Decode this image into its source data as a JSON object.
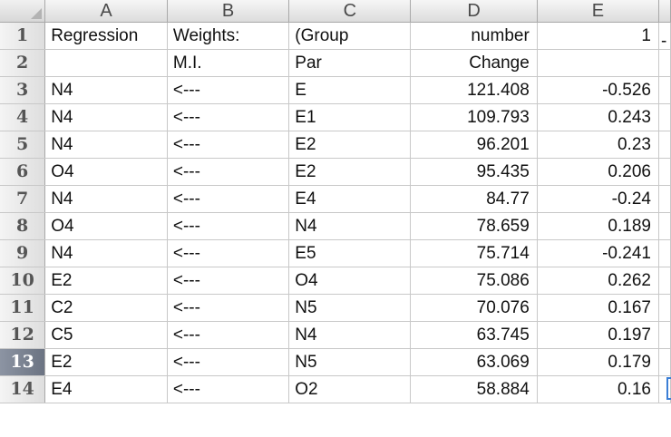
{
  "columns": [
    "A",
    "B",
    "C",
    "D",
    "E"
  ],
  "rows": [
    {
      "num": "1",
      "cells": [
        "Regression",
        "Weights:",
        "(Group",
        "number",
        "1"
      ]
    },
    {
      "num": "2",
      "cells": [
        "",
        "M.I.",
        "Par",
        "Change",
        ""
      ]
    },
    {
      "num": "3",
      "cells": [
        "N4",
        "<---",
        "E",
        "121.408",
        "-0.526"
      ]
    },
    {
      "num": "4",
      "cells": [
        "N4",
        "<---",
        "E1",
        "109.793",
        "0.243"
      ]
    },
    {
      "num": "5",
      "cells": [
        "N4",
        "<---",
        "E2",
        "96.201",
        "0.23"
      ]
    },
    {
      "num": "6",
      "cells": [
        "O4",
        "<---",
        "E2",
        "95.435",
        "0.206"
      ]
    },
    {
      "num": "7",
      "cells": [
        "N4",
        "<---",
        "E4",
        "84.77",
        "-0.24"
      ]
    },
    {
      "num": "8",
      "cells": [
        "O4",
        "<---",
        "N4",
        "78.659",
        "0.189"
      ]
    },
    {
      "num": "9",
      "cells": [
        "N4",
        "<---",
        "E5",
        "75.714",
        "-0.241"
      ]
    },
    {
      "num": "10",
      "cells": [
        "E2",
        "<---",
        "O4",
        "75.086",
        "0.262"
      ]
    },
    {
      "num": "11",
      "cells": [
        "C2",
        "<---",
        "N5",
        "70.076",
        "0.167"
      ]
    },
    {
      "num": "12",
      "cells": [
        "C5",
        "<---",
        "N4",
        "63.745",
        "0.197"
      ]
    },
    {
      "num": "13",
      "cells": [
        "E2",
        "<---",
        "N5",
        "63.069",
        "0.179"
      ]
    },
    {
      "num": "14",
      "cells": [
        "E4",
        "<---",
        "O2",
        "58.884",
        "0.16"
      ]
    }
  ],
  "overflow_text": "-",
  "selected_row": "13",
  "colors": {
    "header_bg": "#dcdcdc",
    "selected_row_header": "#6b7382",
    "active_cell_border": "#3b7fd6",
    "grid_line": "#c8c8c8"
  },
  "icons": {
    "select_all": "select-all-triangle-icon"
  }
}
